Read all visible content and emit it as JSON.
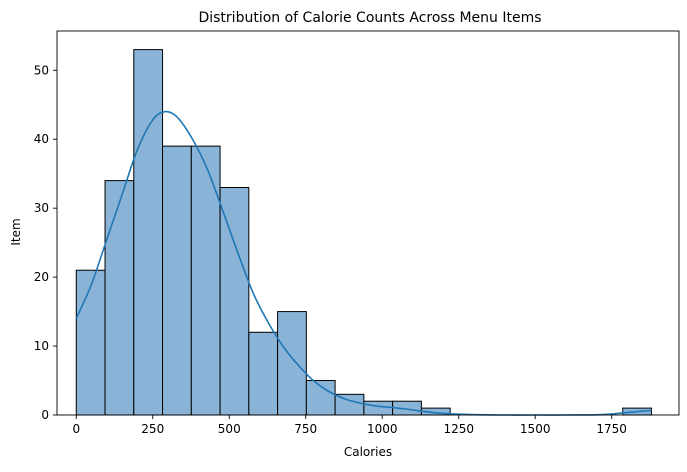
{
  "chart_data": {
    "type": "bar",
    "title": "Distribution of Calorie Counts Across Menu Items",
    "xlabel": "Calories",
    "ylabel": "Item",
    "xlim": [
      -63,
      1970
    ],
    "ylim": [
      0,
      55.7
    ],
    "xticks": [
      0,
      250,
      500,
      750,
      1000,
      1250,
      1500,
      1750
    ],
    "yticks": [
      0,
      10,
      20,
      30,
      40,
      50
    ],
    "bins": [
      {
        "x0": 0,
        "x1": 94,
        "count": 21
      },
      {
        "x0": 94,
        "x1": 188,
        "count": 34
      },
      {
        "x0": 188,
        "x1": 282,
        "count": 53
      },
      {
        "x0": 282,
        "x1": 376,
        "count": 39
      },
      {
        "x0": 376,
        "x1": 470,
        "count": 39
      },
      {
        "x0": 470,
        "x1": 564,
        "count": 33
      },
      {
        "x0": 564,
        "x1": 658,
        "count": 12
      },
      {
        "x0": 658,
        "x1": 752,
        "count": 15
      },
      {
        "x0": 752,
        "x1": 846,
        "count": 5
      },
      {
        "x0": 846,
        "x1": 940,
        "count": 3
      },
      {
        "x0": 940,
        "x1": 1034,
        "count": 2
      },
      {
        "x0": 1034,
        "x1": 1128,
        "count": 2
      },
      {
        "x0": 1128,
        "x1": 1222,
        "count": 1
      },
      {
        "x0": 1222,
        "x1": 1316,
        "count": 0
      },
      {
        "x0": 1316,
        "x1": 1410,
        "count": 0
      },
      {
        "x0": 1410,
        "x1": 1504,
        "count": 0
      },
      {
        "x0": 1504,
        "x1": 1598,
        "count": 0
      },
      {
        "x0": 1598,
        "x1": 1692,
        "count": 0
      },
      {
        "x0": 1692,
        "x1": 1786,
        "count": 0
      },
      {
        "x0": 1786,
        "x1": 1880,
        "count": 1
      }
    ],
    "kde": {
      "x": [
        0,
        50,
        100,
        150,
        200,
        250,
        290,
        330,
        380,
        430,
        480,
        530,
        580,
        630,
        680,
        730,
        780,
        830,
        880,
        930,
        980,
        1030,
        1080,
        1130,
        1180,
        1230,
        1300,
        1400,
        1500,
        1600,
        1700,
        1750,
        1800,
        1850,
        1880
      ],
      "y": [
        14,
        19,
        25.5,
        32,
        38.5,
        42.8,
        44,
        43.2,
        40,
        35.5,
        29.5,
        23.3,
        17.5,
        13.2,
        9.7,
        7,
        4.8,
        3.3,
        2.3,
        1.7,
        1.3,
        1.1,
        0.85,
        0.55,
        0.3,
        0.15,
        0.05,
        0,
        0,
        0,
        0.03,
        0.15,
        0.35,
        0.55,
        0.65
      ]
    },
    "bar_color": "#89b4d8",
    "edge_color": "#000000",
    "kde_color": "#1f77b4",
    "grid": false,
    "legend": "none"
  }
}
